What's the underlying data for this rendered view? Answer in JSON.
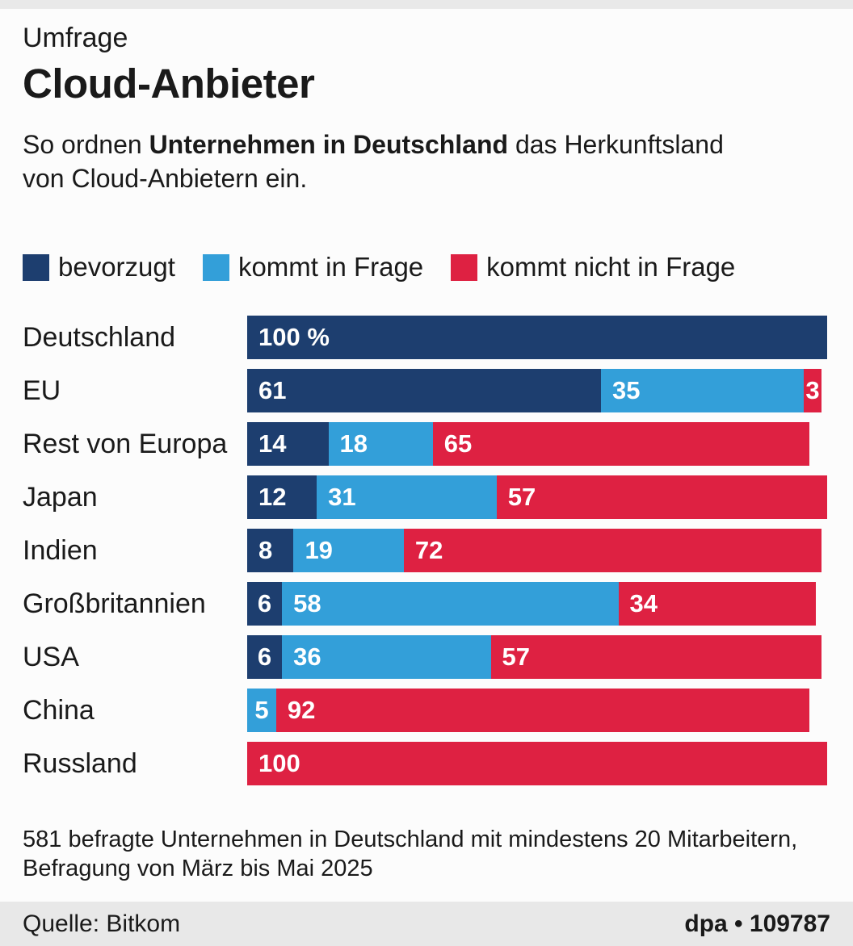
{
  "colors": {
    "background": "#fcfcfc",
    "top_strip": "#e9e9e9",
    "footer_band": "#e8e8e8",
    "text": "#1a1a1a",
    "bar_label": "#ffffff",
    "bevorzugt": "#1d3e6f",
    "kommt_in_frage": "#339fd9",
    "kommt_nicht_in_frage": "#de2142"
  },
  "header": {
    "kicker": "Umfrage",
    "title": "Cloud-Anbieter",
    "desc_prefix": "So ordnen ",
    "desc_bold": "Unternehmen in Deutschland",
    "desc_suffix": " das Herkunftsland",
    "desc_line2": "von Cloud-Anbietern ein."
  },
  "legend": [
    {
      "label": "bevorzugt",
      "color": "#1d3e6f"
    },
    {
      "label": "kommt in Frage",
      "color": "#339fd9"
    },
    {
      "label": "kommt nicht in Frage",
      "color": "#de2142"
    }
  ],
  "chart_data": {
    "type": "bar",
    "stacked": true,
    "orientation": "horizontal",
    "unit": "%",
    "xlim": [
      0,
      100
    ],
    "grid": false,
    "legend_position": "top",
    "categories": [
      "Deutschland",
      "EU",
      "Rest von Europa",
      "Japan",
      "Indien",
      "Großbritannien",
      "USA",
      "China",
      "Russland"
    ],
    "series": [
      {
        "name": "bevorzugt",
        "color": "#1d3e6f",
        "values": [
          100,
          61,
          14,
          12,
          8,
          6,
          6,
          0,
          0
        ]
      },
      {
        "name": "kommt in Frage",
        "color": "#339fd9",
        "values": [
          0,
          35,
          18,
          31,
          19,
          58,
          36,
          5,
          0
        ]
      },
      {
        "name": "kommt nicht in Frage",
        "color": "#de2142",
        "values": [
          0,
          3,
          65,
          57,
          72,
          34,
          57,
          92,
          100
        ]
      }
    ],
    "rows": [
      {
        "category": "Deutschland",
        "segments": [
          {
            "series": "bevorzugt",
            "value": 100,
            "label": "100 %"
          }
        ]
      },
      {
        "category": "EU",
        "segments": [
          {
            "series": "bevorzugt",
            "value": 61,
            "label": "61"
          },
          {
            "series": "kommt in Frage",
            "value": 35,
            "label": "35"
          },
          {
            "series": "kommt nicht in Frage",
            "value": 3,
            "label": "3"
          }
        ]
      },
      {
        "category": "Rest von Europa",
        "segments": [
          {
            "series": "bevorzugt",
            "value": 14,
            "label": "14"
          },
          {
            "series": "kommt in Frage",
            "value": 18,
            "label": "18"
          },
          {
            "series": "kommt nicht in Frage",
            "value": 65,
            "label": "65"
          }
        ]
      },
      {
        "category": "Japan",
        "segments": [
          {
            "series": "bevorzugt",
            "value": 12,
            "label": "12"
          },
          {
            "series": "kommt in Frage",
            "value": 31,
            "label": "31"
          },
          {
            "series": "kommt nicht in Frage",
            "value": 57,
            "label": "57"
          }
        ]
      },
      {
        "category": "Indien",
        "segments": [
          {
            "series": "bevorzugt",
            "value": 8,
            "label": "8"
          },
          {
            "series": "kommt in Frage",
            "value": 19,
            "label": "19"
          },
          {
            "series": "kommt nicht in Frage",
            "value": 72,
            "label": "72"
          }
        ]
      },
      {
        "category": "Großbritannien",
        "segments": [
          {
            "series": "bevorzugt",
            "value": 6,
            "label": "6"
          },
          {
            "series": "kommt in Frage",
            "value": 58,
            "label": "58"
          },
          {
            "series": "kommt nicht in Frage",
            "value": 34,
            "label": "34"
          }
        ]
      },
      {
        "category": "USA",
        "segments": [
          {
            "series": "bevorzugt",
            "value": 6,
            "label": "6"
          },
          {
            "series": "kommt in Frage",
            "value": 36,
            "label": "36"
          },
          {
            "series": "kommt nicht in Frage",
            "value": 57,
            "label": "57"
          }
        ]
      },
      {
        "category": "China",
        "segments": [
          {
            "series": "kommt in Frage",
            "value": 5,
            "label": "5"
          },
          {
            "series": "kommt nicht in Frage",
            "value": 92,
            "label": "92"
          }
        ]
      },
      {
        "category": "Russland",
        "segments": [
          {
            "series": "kommt nicht in Frage",
            "value": 100,
            "label": "100"
          }
        ]
      }
    ]
  },
  "footnote": {
    "line1": "581 befragte Unternehmen in Deutschland mit mindestens 20 Mitarbeitern,",
    "line2": "Befragung von März bis Mai 2025"
  },
  "footer": {
    "source": "Quelle: Bitkom",
    "credit": "dpa • 109787"
  }
}
